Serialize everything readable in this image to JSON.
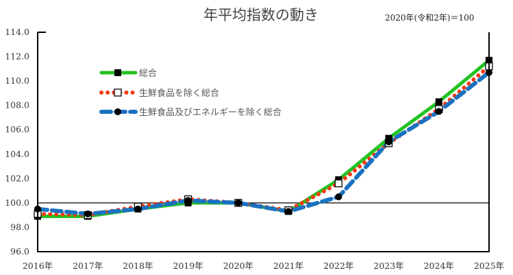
{
  "title": "年平均指数の動き",
  "subtitle": "2020年(令和2年)＝100",
  "chart_data": {
    "type": "line",
    "title": "年平均指数の動き",
    "subtitle": "2020年(令和2年)＝100",
    "xlabel": "",
    "ylabel": "",
    "categories": [
      "2016年",
      "2017年",
      "2018年",
      "2019年",
      "2020年",
      "2021年",
      "2022年",
      "2023年",
      "2024年",
      "2025年"
    ],
    "ylim": [
      96.0,
      114.0
    ],
    "yticks": [
      "114.0",
      "112.0",
      "110.0",
      "108.0",
      "106.0",
      "104.0",
      "102.0",
      "100.0",
      "98.0",
      "96.0"
    ],
    "reference_line": 100.0,
    "grid": false,
    "legend_position": "upper-left inside",
    "series": [
      {
        "name": "総合",
        "color": "#22c322",
        "style": "solid",
        "marker": "filled-square",
        "values": [
          98.9,
          98.9,
          99.5,
          100.0,
          100.0,
          99.3,
          101.9,
          105.3,
          108.3,
          111.7
        ]
      },
      {
        "name": "生鮮食品を除く総合",
        "color": "#f03c14",
        "style": "dotted",
        "marker": "open-square",
        "values": [
          99.1,
          99.0,
          99.7,
          100.3,
          100.0,
          99.4,
          101.6,
          104.9,
          107.7,
          111.2
        ]
      },
      {
        "name": "生鮮食品及びエネルギーを除く総合",
        "color": "#1a72c2",
        "style": "dashed",
        "marker": "filled-circle",
        "values": [
          99.5,
          99.1,
          99.5,
          100.2,
          100.0,
          99.3,
          100.5,
          105.0,
          107.5,
          110.7
        ]
      }
    ]
  }
}
